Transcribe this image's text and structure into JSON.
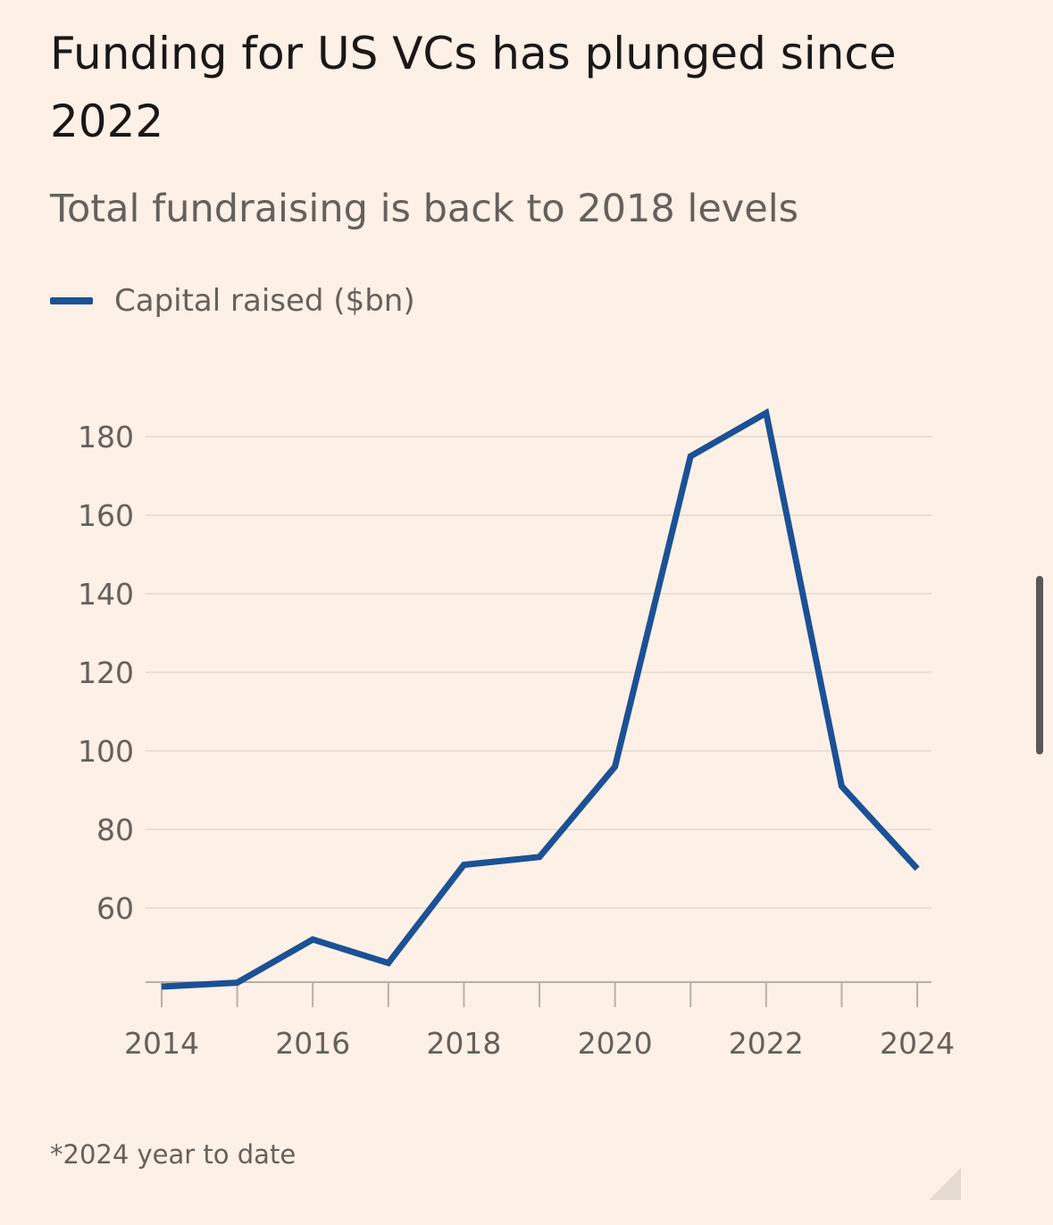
{
  "title": "Funding for US VCs has plunged since 2022",
  "subtitle": "Total fundraising is back to 2018 levels",
  "footnote": "*2024 year to date",
  "colors": {
    "background": "#fdf0e6",
    "line": "#1b5196",
    "grid": "#e9dfd7",
    "axis": "#b8b0aa",
    "text_muted": "#66605c"
  },
  "chart_data": {
    "type": "line",
    "title": "Funding for US VCs has plunged since 2022",
    "subtitle": "Total fundraising is back to 2018 levels",
    "xlabel": "",
    "ylabel": "",
    "x": [
      2014,
      2015,
      2016,
      2017,
      2018,
      2019,
      2020,
      2021,
      2022,
      2023,
      2024
    ],
    "series": [
      {
        "name": "Capital raised ($bn)",
        "values": [
          40,
          41,
          52,
          46,
          71,
          73,
          96,
          175,
          186,
          91,
          70
        ]
      }
    ],
    "xticks": [
      "2014",
      "2016",
      "2018",
      "2020",
      "2022",
      "2024"
    ],
    "yticks": [
      "60",
      "80",
      "100",
      "120",
      "140",
      "160",
      "180"
    ],
    "xlim": [
      2014,
      2024
    ],
    "ylim": [
      40,
      190
    ],
    "grid": "horizontal",
    "legend_position": "top-left"
  }
}
